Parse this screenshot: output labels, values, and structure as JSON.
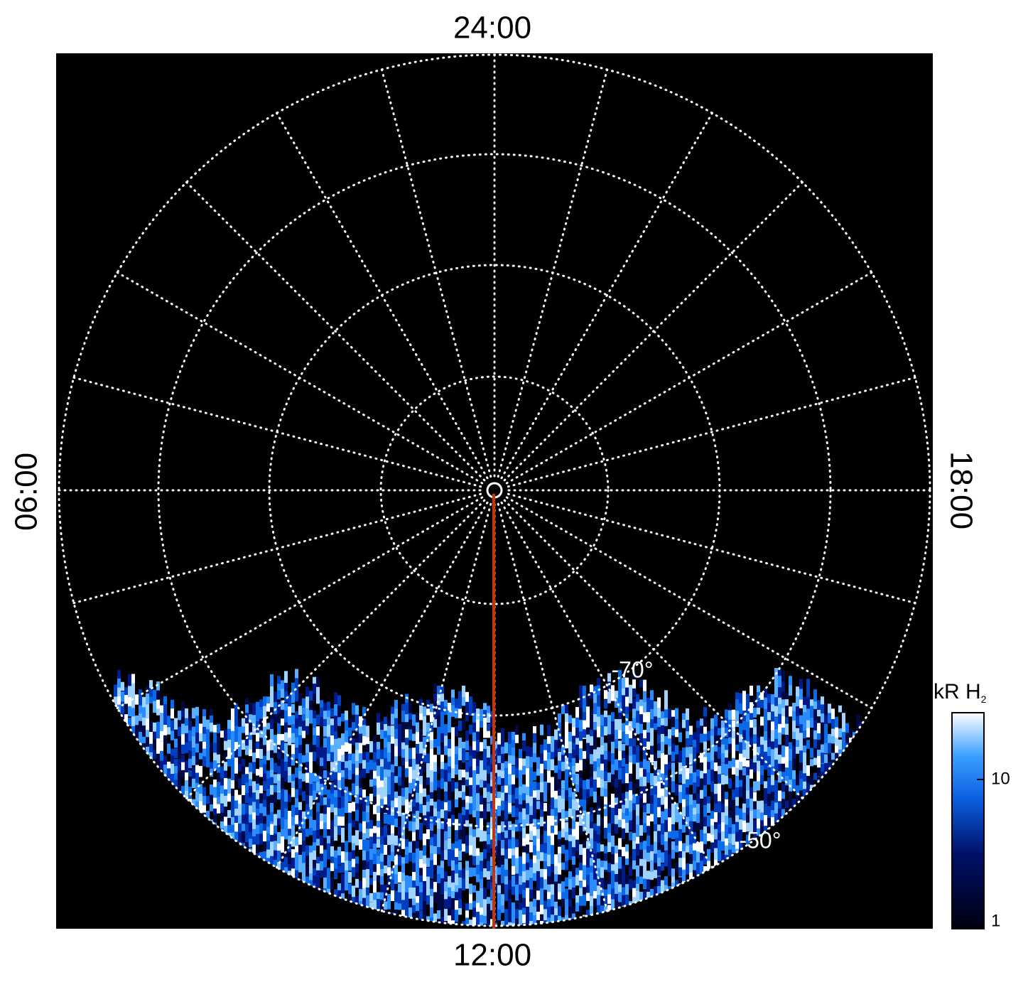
{
  "chart_data": {
    "type": "polar-image",
    "local_time_labels": {
      "top": "24:00",
      "left": "06:00",
      "bottom": "12:00",
      "right": "18:00"
    },
    "latitude_labels": [
      "-70°",
      "-50°"
    ],
    "colorbar": {
      "label": "kR H",
      "label_subscript": "2",
      "scale": "log",
      "lim": [
        1,
        28
      ],
      "ticks": [
        1,
        10
      ]
    }
  }
}
